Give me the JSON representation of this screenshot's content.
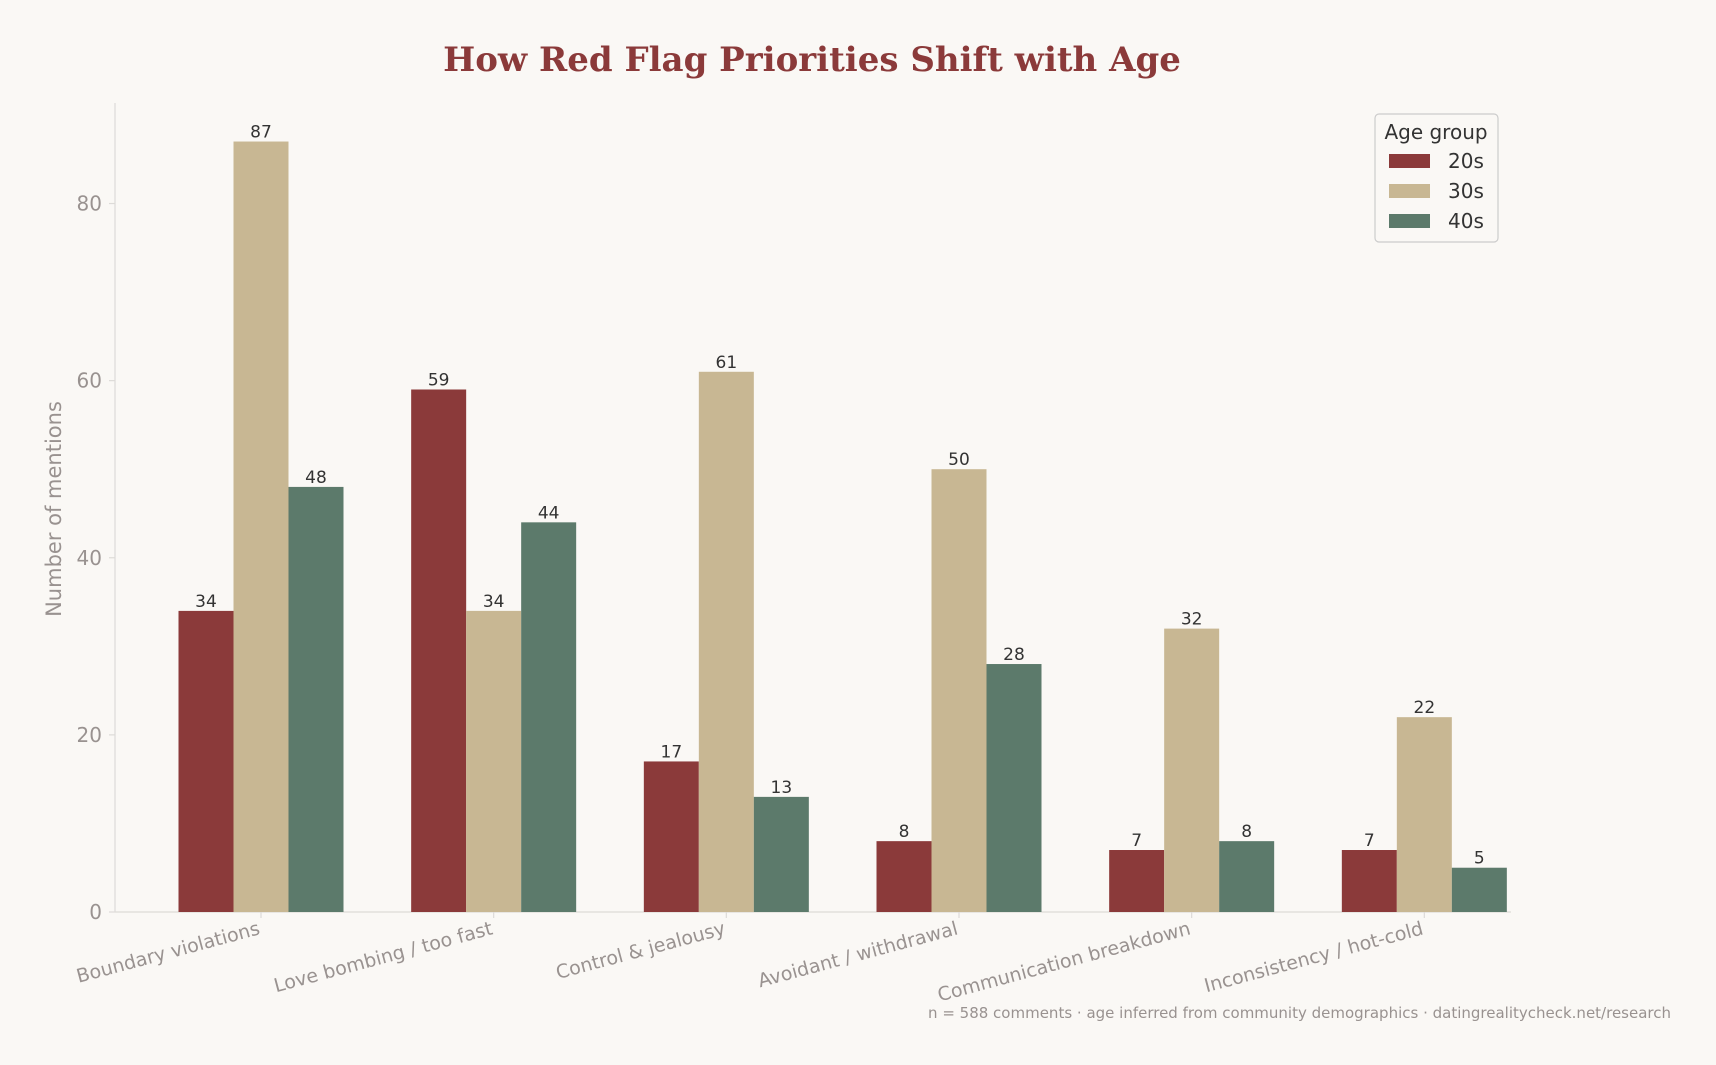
{
  "colors": {
    "background": "#faf8f5",
    "title": "#8b3a3a",
    "axis_text": "#999290",
    "axis_line": "#dddbd8",
    "label_text": "#333333",
    "legend_text": "#333333",
    "legend_border": "#cccccc"
  },
  "chart_data": {
    "type": "bar",
    "title": "How Red Flag Priorities Shift with Age",
    "xlabel": "",
    "ylabel": "Number of mentions",
    "ylim": [
      0,
      91.35
    ],
    "yticks": [
      0,
      20,
      40,
      60,
      80
    ],
    "grid": false,
    "legend": {
      "title": "Age group",
      "placement": "top-right"
    },
    "categories": [
      "Boundary violations",
      "Love bombing / too fast",
      "Control & jealousy",
      "Avoidant / withdrawal",
      "Communication breakdown",
      "Inconsistency / hot-cold"
    ],
    "series": [
      {
        "name": "20s",
        "color": "#8b3a3a",
        "values": [
          34,
          59,
          17,
          8,
          7,
          7
        ]
      },
      {
        "name": "30s",
        "color": "#c8b793",
        "values": [
          87,
          34,
          61,
          50,
          32,
          22
        ]
      },
      {
        "name": "40s",
        "color": "#5c7a6b",
        "values": [
          48,
          44,
          13,
          28,
          8,
          5
        ]
      }
    ],
    "annotations": [
      "n = 588 comments · age inferred from community demographics · datingrealitycheck.net/research"
    ]
  }
}
